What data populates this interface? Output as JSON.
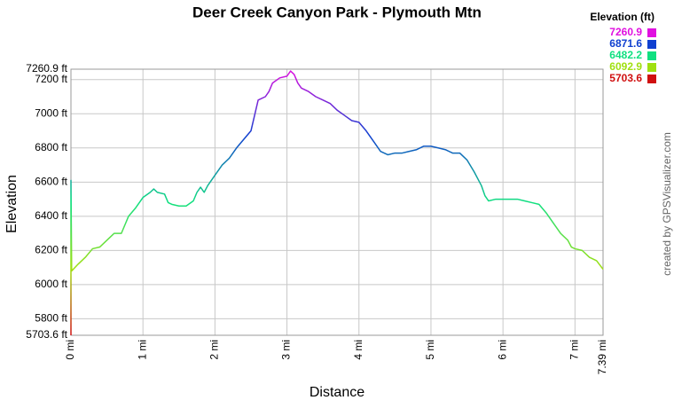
{
  "chart_data": {
    "type": "line",
    "title": "Deer Creek Canyon Park - Plymouth Mtn",
    "x_label": "Distance",
    "y_label": "Elevation",
    "credit": "created by GPSVisualizer.com",
    "legend_title": "Elevation (ft)",
    "color_scale": [
      {
        "value": 7260.9,
        "color": "#e010e0"
      },
      {
        "value": 6871.6,
        "color": "#1040d0"
      },
      {
        "value": 6482.2,
        "color": "#10e080"
      },
      {
        "value": 6092.9,
        "color": "#a0e010"
      },
      {
        "value": 5703.6,
        "color": "#d01010"
      }
    ],
    "grid": true,
    "xlim": [
      0,
      7.39
    ],
    "ylim": [
      5703.6,
      7260.9
    ],
    "xticks": [
      {
        "value": 0,
        "label": "0 mi"
      },
      {
        "value": 1,
        "label": "1 mi"
      },
      {
        "value": 2,
        "label": "2 mi"
      },
      {
        "value": 3,
        "label": "3 mi"
      },
      {
        "value": 4,
        "label": "4 mi"
      },
      {
        "value": 5,
        "label": "5 mi"
      },
      {
        "value": 6,
        "label": "6 mi"
      },
      {
        "value": 7,
        "label": "7 mi"
      },
      {
        "value": 7.39,
        "label": "7.39 mi"
      }
    ],
    "yticks": [
      {
        "value": 5703.6,
        "label": "5703.6 ft"
      },
      {
        "value": 5800,
        "label": "5800 ft"
      },
      {
        "value": 6000,
        "label": "6000 ft"
      },
      {
        "value": 6200,
        "label": "6200 ft"
      },
      {
        "value": 6400,
        "label": "6400 ft"
      },
      {
        "value": 6600,
        "label": "6600 ft"
      },
      {
        "value": 6800,
        "label": "6800 ft"
      },
      {
        "value": 7000,
        "label": "7000 ft"
      },
      {
        "value": 7200,
        "label": "7200 ft"
      },
      {
        "value": 7260.9,
        "label": "7260.9 ft"
      }
    ],
    "x": [
      0,
      0,
      0.01,
      0.1,
      0.2,
      0.3,
      0.4,
      0.5,
      0.6,
      0.7,
      0.75,
      0.8,
      0.9,
      1.0,
      1.1,
      1.15,
      1.2,
      1.3,
      1.35,
      1.4,
      1.5,
      1.6,
      1.7,
      1.75,
      1.8,
      1.85,
      1.9,
      2.0,
      2.1,
      2.2,
      2.3,
      2.4,
      2.5,
      2.55,
      2.6,
      2.7,
      2.75,
      2.8,
      2.9,
      3.0,
      3.05,
      3.1,
      3.15,
      3.2,
      3.3,
      3.4,
      3.5,
      3.6,
      3.7,
      3.8,
      3.9,
      4.0,
      4.1,
      4.2,
      4.3,
      4.4,
      4.5,
      4.6,
      4.7,
      4.8,
      4.9,
      5.0,
      5.1,
      5.2,
      5.3,
      5.4,
      5.5,
      5.6,
      5.7,
      5.75,
      5.8,
      5.9,
      6.0,
      6.1,
      6.2,
      6.3,
      6.4,
      6.5,
      6.6,
      6.7,
      6.8,
      6.9,
      6.95,
      7.0,
      7.1,
      7.2,
      7.3,
      7.39
    ],
    "values": [
      5703.6,
      6610,
      6080,
      6120,
      6160,
      6210,
      6220,
      6260,
      6300,
      6300,
      6350,
      6400,
      6450,
      6510,
      6540,
      6560,
      6540,
      6530,
      6480,
      6470,
      6460,
      6460,
      6490,
      6540,
      6570,
      6540,
      6580,
      6640,
      6700,
      6740,
      6800,
      6850,
      6900,
      6990,
      7080,
      7100,
      7130,
      7180,
      7210,
      7220,
      7250,
      7230,
      7180,
      7150,
      7130,
      7100,
      7080,
      7060,
      7020,
      6990,
      6960,
      6950,
      6900,
      6840,
      6780,
      6760,
      6770,
      6770,
      6780,
      6790,
      6810,
      6810,
      6800,
      6790,
      6770,
      6770,
      6730,
      6660,
      6580,
      6520,
      6490,
      6500,
      6500,
      6500,
      6500,
      6490,
      6480,
      6470,
      6420,
      6360,
      6300,
      6260,
      6220,
      6210,
      6200,
      6160,
      6140,
      6090
    ]
  }
}
